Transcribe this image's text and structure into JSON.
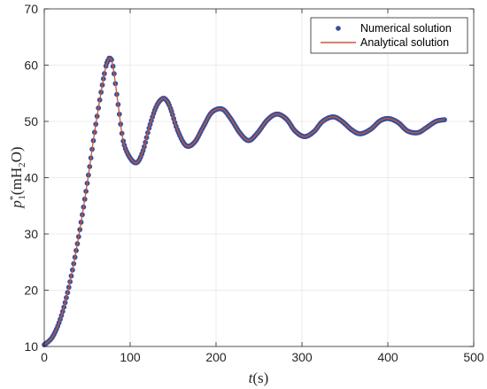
{
  "chart_data": {
    "type": "line",
    "title": "",
    "xlabel": "t(s)",
    "ylabel": "p*1(mH2O)",
    "xlim": [
      0,
      500
    ],
    "ylim": [
      10,
      70
    ],
    "x_ticks": [
      0,
      100,
      200,
      300,
      400,
      500
    ],
    "y_ticks": [
      10,
      20,
      30,
      40,
      50,
      60,
      70
    ],
    "x_tick_labels": [
      "0",
      "100",
      "200",
      "300",
      "400",
      "500"
    ],
    "y_tick_labels": [
      "10",
      "20",
      "30",
      "40",
      "50",
      "60",
      "70"
    ],
    "grid": true,
    "legend_position": "top-right",
    "series": [
      {
        "name": "Numerical solution",
        "style": "markers",
        "color": "#3a4f9a",
        "x": [
          0,
          10,
          20,
          30,
          40,
          50,
          60,
          70,
          74,
          77,
          80,
          86,
          92,
          100,
          108,
          115,
          122,
          130,
          137,
          142,
          147,
          155,
          165,
          175,
          185,
          195,
          207,
          217,
          228,
          238,
          248,
          260,
          271,
          282,
          292,
          303,
          314,
          324,
          336,
          346,
          358,
          368,
          380,
          391,
          401,
          412,
          423,
          435,
          445,
          456,
          466
        ],
        "y": [
          10.3,
          11.8,
          15.5,
          21.5,
          29.5,
          39.0,
          49.5,
          58.5,
          60.8,
          61.2,
          59.8,
          53.0,
          46.5,
          43.5,
          42.7,
          44.8,
          48.8,
          52.5,
          54.0,
          53.8,
          52.3,
          48.5,
          45.7,
          46.3,
          49.0,
          51.6,
          52.2,
          50.5,
          47.9,
          46.6,
          47.9,
          50.3,
          51.3,
          50.4,
          48.3,
          47.3,
          48.2,
          50.0,
          50.8,
          50.1,
          48.5,
          47.8,
          48.6,
          50.1,
          50.5,
          49.8,
          48.3,
          48.0,
          48.9,
          50.0,
          50.3
        ]
      },
      {
        "name": "Analytical solution",
        "style": "line",
        "color": "#c8583a",
        "x": [
          0,
          10,
          20,
          30,
          40,
          50,
          60,
          70,
          74,
          77,
          80,
          86,
          92,
          100,
          108,
          115,
          122,
          130,
          137,
          142,
          147,
          155,
          165,
          175,
          185,
          195,
          207,
          217,
          228,
          238,
          248,
          260,
          271,
          282,
          292,
          303,
          314,
          324,
          336,
          346,
          358,
          368,
          380,
          391,
          401,
          412,
          423,
          435,
          445,
          456,
          466
        ],
        "y": [
          10.3,
          11.8,
          15.5,
          21.5,
          29.5,
          39.0,
          49.5,
          58.5,
          60.8,
          61.2,
          59.8,
          53.0,
          46.5,
          43.5,
          42.7,
          44.8,
          48.8,
          52.5,
          54.0,
          53.8,
          52.3,
          48.5,
          45.7,
          46.3,
          49.0,
          51.6,
          52.2,
          50.5,
          47.9,
          46.6,
          47.9,
          50.3,
          51.3,
          50.4,
          48.3,
          47.3,
          48.2,
          50.0,
          50.8,
          50.1,
          48.5,
          47.8,
          48.6,
          50.1,
          50.5,
          49.8,
          48.3,
          48.0,
          48.9,
          50.0,
          50.3
        ]
      }
    ]
  }
}
